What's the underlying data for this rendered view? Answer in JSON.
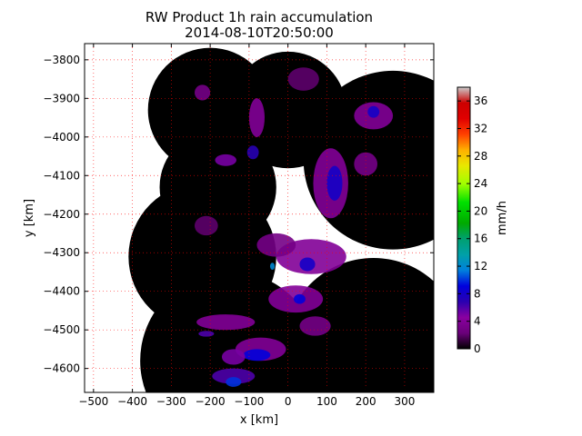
{
  "chart_data": {
    "type": "heatmap",
    "title": "RW Product 1h rain accumulation",
    "subtitle": "2014-08-10T20:50:00",
    "xlabel": "x [km]",
    "ylabel": "y [km]",
    "xlim": [
      -523,
      375
    ],
    "ylim": [
      -4662,
      -3758
    ],
    "xticks": [
      -500,
      -400,
      -300,
      -200,
      -100,
      0,
      100,
      200,
      300
    ],
    "yticks": [
      -3800,
      -3900,
      -4000,
      -4100,
      -4200,
      -4300,
      -4400,
      -4500,
      -4600
    ],
    "xtick_labels": [
      "−500",
      "−400",
      "−300",
      "−200",
      "−100",
      "0",
      "100",
      "200",
      "300"
    ],
    "ytick_labels": [
      "−3800",
      "−3900",
      "−4000",
      "−4100",
      "−4200",
      "−4300",
      "−4400",
      "−4500",
      "−4600"
    ],
    "grid": true,
    "colorbar": {
      "label": "mm/h",
      "min": 0,
      "max": 38,
      "ticks": [
        0,
        4,
        8,
        12,
        16,
        20,
        24,
        28,
        32,
        36
      ],
      "tick_labels": [
        "0",
        "4",
        "8",
        "12",
        "16",
        "20",
        "24",
        "28",
        "32",
        "36"
      ],
      "colormap": "nipy_spectral"
    },
    "radar_coverage": [
      {
        "x": -200,
        "y": -3930,
        "r": 160
      },
      {
        "x": -180,
        "y": -4130,
        "r": 150
      },
      {
        "x": -220,
        "y": -4310,
        "r": 190
      },
      {
        "x": -150,
        "y": -4580,
        "r": 230
      },
      {
        "x": 220,
        "y": -4545,
        "r": 230
      },
      {
        "x": 270,
        "y": -4060,
        "r": 230
      },
      {
        "x": 0,
        "y": -3930,
        "r": 150
      }
    ],
    "rain_cells": [
      {
        "x": -220,
        "y": -3885,
        "w": 40,
        "h": 40,
        "v": 3
      },
      {
        "x": -80,
        "y": -3950,
        "w": 40,
        "h": 100,
        "v": 4
      },
      {
        "x": -90,
        "y": -4040,
        "w": 30,
        "h": 35,
        "v": 7
      },
      {
        "x": -160,
        "y": -4060,
        "w": 55,
        "h": 30,
        "v": 5
      },
      {
        "x": 220,
        "y": -3945,
        "w": 100,
        "h": 70,
        "v": 4
      },
      {
        "x": 220,
        "y": -3935,
        "w": 30,
        "h": 30,
        "v": 8
      },
      {
        "x": 40,
        "y": -3850,
        "w": 80,
        "h": 60,
        "v": 2
      },
      {
        "x": 110,
        "y": -4120,
        "w": 90,
        "h": 180,
        "v": 4
      },
      {
        "x": 120,
        "y": -4120,
        "w": 40,
        "h": 90,
        "v": 8
      },
      {
        "x": 60,
        "y": -4310,
        "w": 180,
        "h": 90,
        "v": 4
      },
      {
        "x": 50,
        "y": -4330,
        "w": 40,
        "h": 35,
        "v": 8
      },
      {
        "x": -30,
        "y": -4280,
        "w": 100,
        "h": 60,
        "v": 3
      },
      {
        "x": -40,
        "y": -4335,
        "w": 12,
        "h": 18,
        "v": 12
      },
      {
        "x": 20,
        "y": -4420,
        "w": 140,
        "h": 70,
        "v": 4
      },
      {
        "x": 30,
        "y": -4420,
        "w": 30,
        "h": 25,
        "v": 9
      },
      {
        "x": -160,
        "y": -4480,
        "w": 150,
        "h": 40,
        "v": 4
      },
      {
        "x": -210,
        "y": -4510,
        "w": 40,
        "h": 15,
        "v": 6
      },
      {
        "x": -70,
        "y": -4550,
        "w": 130,
        "h": 60,
        "v": 4
      },
      {
        "x": -80,
        "y": -4565,
        "w": 70,
        "h": 30,
        "v": 9
      },
      {
        "x": -140,
        "y": -4570,
        "w": 60,
        "h": 40,
        "v": 5
      },
      {
        "x": -140,
        "y": -4620,
        "w": 110,
        "h": 40,
        "v": 6
      },
      {
        "x": -140,
        "y": -4635,
        "w": 40,
        "h": 25,
        "v": 10
      },
      {
        "x": 70,
        "y": -4490,
        "w": 80,
        "h": 50,
        "v": 3
      },
      {
        "x": 200,
        "y": -4070,
        "w": 60,
        "h": 60,
        "v": 3
      },
      {
        "x": -210,
        "y": -4230,
        "w": 60,
        "h": 50,
        "v": 2
      }
    ]
  }
}
